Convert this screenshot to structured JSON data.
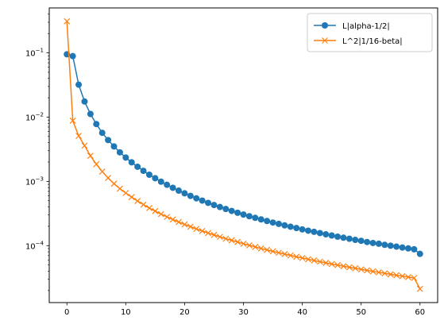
{
  "chart_data": {
    "type": "line",
    "title": "",
    "xlabel": "",
    "ylabel": "",
    "yscale": "log",
    "xlim": [
      -3,
      63
    ],
    "ylim": [
      1.3e-05,
      0.5
    ],
    "grid": false,
    "legend_position": "top-right",
    "x_ticks": [
      {
        "value": 0,
        "label": "0"
      },
      {
        "value": 10,
        "label": "10"
      },
      {
        "value": 20,
        "label": "20"
      },
      {
        "value": 30,
        "label": "30"
      },
      {
        "value": 40,
        "label": "40"
      },
      {
        "value": 50,
        "label": "50"
      },
      {
        "value": 60,
        "label": "60"
      }
    ],
    "y_ticks": [
      {
        "value": 0.1,
        "base": "10",
        "exp": "−1"
      },
      {
        "value": 0.01,
        "base": "10",
        "exp": "−2"
      },
      {
        "value": 0.001,
        "base": "10",
        "exp": "−3"
      },
      {
        "value": 0.0001,
        "base": "10",
        "exp": "−4"
      }
    ],
    "x": [
      0,
      1,
      2,
      3,
      4,
      5,
      6,
      7,
      8,
      9,
      10,
      11,
      12,
      13,
      14,
      15,
      16,
      17,
      18,
      19,
      20,
      21,
      22,
      23,
      24,
      25,
      26,
      27,
      28,
      29,
      30,
      31,
      32,
      33,
      34,
      35,
      36,
      37,
      38,
      39,
      40,
      41,
      42,
      43,
      44,
      45,
      46,
      47,
      48,
      49,
      50,
      51,
      52,
      53,
      54,
      55,
      56,
      57,
      58,
      59,
      60
    ],
    "series": [
      {
        "name": "L|alpha-1/2|",
        "color": "#1f77b4",
        "marker": "circle",
        "values": [
          0.095,
          0.089,
          0.032,
          0.0175,
          0.0112,
          0.0078,
          0.0057,
          0.0044,
          0.0035,
          0.00283,
          0.00235,
          0.00198,
          0.00169,
          0.00146,
          0.00127,
          0.00112,
          0.00099,
          0.000885,
          0.000795,
          0.000718,
          0.000652,
          0.000595,
          0.000545,
          0.000502,
          0.000463,
          0.000429,
          0.000399,
          0.000372,
          0.000347,
          0.000325,
          0.000305,
          0.000287,
          0.000271,
          0.000256,
          0.000242,
          0.000229,
          0.000218,
          0.000207,
          0.000197,
          0.000188,
          0.000179,
          0.000171,
          0.000164,
          0.000157,
          0.00015,
          0.000144,
          0.000138,
          0.000133,
          0.000128,
          0.000123,
          0.000119,
          0.000114,
          0.00011,
          0.000107,
          0.000103,
          9.98e-05,
          9.66e-05,
          9.35e-05,
          9.06e-05,
          8.78e-05,
          7.45e-05
        ]
      },
      {
        "name": "L^2|1/16-beta|",
        "color": "#ff7f0e",
        "marker": "x",
        "values": [
          0.31,
          0.0088,
          0.0051,
          0.0036,
          0.0025,
          0.00185,
          0.00142,
          0.00113,
          0.00092,
          0.00077,
          0.00066,
          0.00057,
          0.000495,
          0.000435,
          0.000385,
          0.000345,
          0.00031,
          0.00028,
          0.000255,
          0.000233,
          0.000214,
          0.000197,
          0.000182,
          0.000169,
          0.000157,
          0.000147,
          0.000137,
          0.000128,
          0.000121,
          0.000114,
          0.000107,
          0.000101,
          9.55e-05,
          9.05e-05,
          8.58e-05,
          8.15e-05,
          7.75e-05,
          7.38e-05,
          7.04e-05,
          6.72e-05,
          6.42e-05,
          6.14e-05,
          5.88e-05,
          5.63e-05,
          5.4e-05,
          5.18e-05,
          4.98e-05,
          4.79e-05,
          4.61e-05,
          4.44e-05,
          4.28e-05,
          4.12e-05,
          3.98e-05,
          3.84e-05,
          3.71e-05,
          3.58e-05,
          3.46e-05,
          3.35e-05,
          3.24e-05,
          3.14e-05,
          2.13e-05
        ]
      }
    ]
  }
}
